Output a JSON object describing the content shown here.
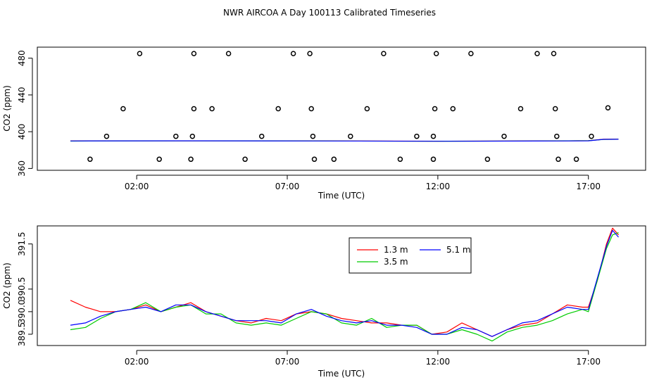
{
  "chart_data": {
    "title": "NWR AIRCOA A  Day 100113  Calibrated Timeseries",
    "colors": {
      "1.3 m": "#ff0000",
      "3.5 m": "#00cc00",
      "5.1 m": "#0000ff",
      "flags": "#000000"
    },
    "panels": [
      {
        "type": "scatter+line",
        "xlabel": "Time (UTC)",
        "ylabel": "CO2 (ppm)",
        "xlim": [
          -1.3,
          18.9
        ],
        "ylim": [
          358,
          492
        ],
        "x_ticks": [
          2,
          7,
          12,
          17
        ],
        "x_tick_labels": [
          "02:00",
          "07:00",
          "12:00",
          "17:00"
        ],
        "y_ticks": [
          360,
          400,
          440,
          480
        ],
        "y_tick_labels": [
          "360",
          "400",
          "440",
          "480"
        ],
        "points": [
          [
            0.45,
            370
          ],
          [
            1.0,
            395
          ],
          [
            1.55,
            425
          ],
          [
            2.1,
            485
          ],
          [
            2.75,
            370
          ],
          [
            3.3,
            395
          ],
          [
            3.8,
            370
          ],
          [
            3.85,
            395
          ],
          [
            3.9,
            425
          ],
          [
            3.9,
            485
          ],
          [
            4.5,
            425
          ],
          [
            5.05,
            485
          ],
          [
            5.6,
            370
          ],
          [
            6.15,
            395
          ],
          [
            6.7,
            425
          ],
          [
            7.2,
            485
          ],
          [
            7.75,
            485
          ],
          [
            7.8,
            425
          ],
          [
            7.85,
            395
          ],
          [
            7.9,
            370
          ],
          [
            8.55,
            370
          ],
          [
            9.1,
            395
          ],
          [
            9.65,
            425
          ],
          [
            10.2,
            485
          ],
          [
            10.75,
            370
          ],
          [
            11.3,
            395
          ],
          [
            11.85,
            370
          ],
          [
            11.85,
            395
          ],
          [
            11.9,
            425
          ],
          [
            11.95,
            485
          ],
          [
            12.5,
            425
          ],
          [
            13.1,
            485
          ],
          [
            13.65,
            370
          ],
          [
            14.2,
            395
          ],
          [
            14.75,
            425
          ],
          [
            15.3,
            485
          ],
          [
            15.85,
            485
          ],
          [
            15.9,
            425
          ],
          [
            15.95,
            395
          ],
          [
            16.0,
            370
          ],
          [
            16.6,
            370
          ],
          [
            17.1,
            395
          ],
          [
            17.65,
            426
          ]
        ],
        "series": [
          {
            "name": "1.3 m",
            "x": [
              -0.2,
              4.0,
              8.0,
              12.0,
              16.0,
              17.0,
              17.5,
              18.0
            ],
            "values": [
              390.0,
              390.0,
              390.0,
              389.7,
              390.0,
              390.2,
              391.8,
              391.9
            ]
          },
          {
            "name": "3.5 m",
            "x": [
              -0.2,
              4.0,
              8.0,
              12.0,
              16.0,
              17.0,
              17.5,
              18.0
            ],
            "values": [
              389.8,
              390.1,
              389.9,
              389.6,
              390.0,
              390.2,
              391.6,
              391.8
            ]
          },
          {
            "name": "5.1 m",
            "x": [
              -0.2,
              4.0,
              8.0,
              12.0,
              16.0,
              17.0,
              17.5,
              18.0
            ],
            "values": [
              389.9,
              390.1,
              389.9,
              389.6,
              389.9,
              390.1,
              391.7,
              391.8
            ]
          }
        ]
      },
      {
        "type": "line",
        "xlabel": "Time (UTC)",
        "ylabel": "CO2 (ppm)",
        "xlim": [
          -1.3,
          18.9
        ],
        "ylim": [
          389.25,
          391.9
        ],
        "x_ticks": [
          2,
          7,
          12,
          17
        ],
        "x_tick_labels": [
          "02:00",
          "07:00",
          "12:00",
          "17:00"
        ],
        "y_ticks": [
          389.5,
          390.0,
          390.5,
          391.5
        ],
        "y_tick_labels": [
          "389.5",
          "390.0",
          "390.5",
          "391.5"
        ],
        "legend": {
          "position": "top-right",
          "entries": [
            "1.3 m",
            "3.5 m",
            "5.1 m"
          ]
        },
        "series": [
          {
            "name": "1.3 m",
            "x": [
              -0.2,
              0.3,
              0.8,
              1.3,
              1.8,
              2.3,
              2.8,
              3.3,
              3.8,
              4.3,
              4.8,
              5.3,
              5.8,
              6.3,
              6.8,
              7.3,
              7.8,
              8.3,
              8.8,
              9.3,
              9.8,
              10.3,
              10.8,
              11.3,
              11.8,
              12.3,
              12.8,
              13.3,
              13.8,
              14.3,
              14.8,
              15.3,
              15.8,
              16.3,
              16.8,
              17.0,
              17.3,
              17.6,
              17.8,
              18.0
            ],
            "values": [
              390.25,
              390.1,
              390.0,
              390.0,
              390.05,
              390.15,
              390.0,
              390.1,
              390.2,
              390.0,
              389.9,
              389.8,
              389.75,
              389.85,
              389.8,
              389.95,
              390.0,
              389.95,
              389.85,
              389.8,
              389.75,
              389.75,
              389.7,
              389.7,
              389.5,
              389.55,
              389.75,
              389.6,
              389.45,
              389.6,
              389.7,
              389.75,
              389.95,
              390.15,
              390.1,
              390.1,
              390.7,
              391.5,
              391.85,
              391.7
            ]
          },
          {
            "name": "3.5 m",
            "x": [
              -0.2,
              0.3,
              0.8,
              1.3,
              1.8,
              2.3,
              2.8,
              3.3,
              3.8,
              4.3,
              4.8,
              5.3,
              5.8,
              6.3,
              6.8,
              7.3,
              7.8,
              8.3,
              8.8,
              9.3,
              9.8,
              10.3,
              10.8,
              11.3,
              11.8,
              12.3,
              12.8,
              13.3,
              13.8,
              14.3,
              14.8,
              15.3,
              15.8,
              16.3,
              16.8,
              17.0,
              17.3,
              17.6,
              17.8,
              18.0
            ],
            "values": [
              389.6,
              389.65,
              389.85,
              390.0,
              390.05,
              390.2,
              390.0,
              390.1,
              390.15,
              389.95,
              389.95,
              389.75,
              389.7,
              389.75,
              389.7,
              389.85,
              390.0,
              389.95,
              389.75,
              389.7,
              389.85,
              389.65,
              389.7,
              389.7,
              389.5,
              389.5,
              389.6,
              389.5,
              389.35,
              389.55,
              389.65,
              389.7,
              389.8,
              389.95,
              390.05,
              390.0,
              390.7,
              391.4,
              391.7,
              391.75
            ]
          },
          {
            "name": "5.1 m",
            "x": [
              -0.2,
              0.3,
              0.8,
              1.3,
              1.8,
              2.3,
              2.8,
              3.3,
              3.8,
              4.3,
              4.8,
              5.3,
              5.8,
              6.3,
              6.8,
              7.3,
              7.8,
              8.3,
              8.8,
              9.3,
              9.8,
              10.3,
              10.8,
              11.3,
              11.8,
              12.3,
              12.8,
              13.3,
              13.8,
              14.3,
              14.8,
              15.3,
              15.8,
              16.3,
              16.8,
              17.0,
              17.3,
              17.6,
              17.8,
              18.0
            ],
            "values": [
              389.7,
              389.75,
              389.9,
              390.0,
              390.05,
              390.1,
              390.0,
              390.15,
              390.15,
              390.0,
              389.9,
              389.8,
              389.8,
              389.8,
              389.75,
              389.95,
              390.05,
              389.9,
              389.8,
              389.75,
              389.8,
              389.7,
              389.7,
              389.65,
              389.5,
              389.5,
              389.65,
              389.6,
              389.45,
              389.6,
              389.75,
              389.8,
              389.95,
              390.1,
              390.05,
              390.05,
              390.75,
              391.45,
              391.8,
              391.65
            ]
          }
        ]
      }
    ]
  }
}
